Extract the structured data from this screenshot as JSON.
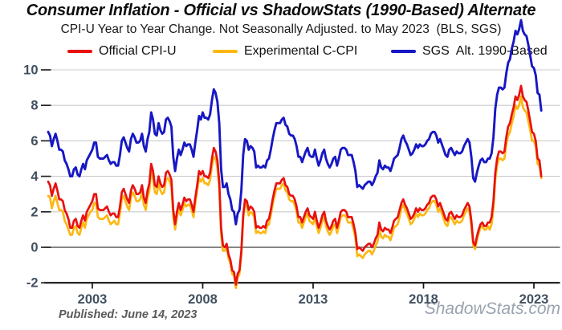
{
  "title": "Consumer Inflation - Official vs ShadowStats (1990-Based) Alternate",
  "subtitle": "CPI-U Year to Year Change. Not Seasonally Adjusted. to May 2023  (BLS, SGS)",
  "legend": {
    "items": [
      {
        "label": "Official CPI-U"
      },
      {
        "label": "Experimental C-CPI"
      },
      {
        "label": "SGS  Alt. 1990-Based"
      }
    ]
  },
  "footer": {
    "published": "Published: June 14, 2023",
    "watermark": "ShadowStats.com"
  },
  "colors": {
    "official_red": "#e81110",
    "ccpi_yellow": "#fcb813",
    "sgs_blue": "#1717c4",
    "gridline": "#cccccc",
    "zero_line": "#5f5f5f",
    "axis_line": "#151515",
    "axis_label": "#41505f",
    "watermark_gray": "#9aa3ae"
  },
  "chart_data": {
    "type": "line",
    "title": "Consumer Inflation - Official vs ShadowStats (1990-Based) Alternate",
    "xlabel": "",
    "ylabel": "",
    "x_start_year": 2001,
    "points_per_year": 12,
    "x_end_label": "May 2023",
    "grid": "horizontal",
    "legend_position": "top",
    "axis_label_color": "#41505f",
    "y_axis": {
      "min": -2,
      "max": 10,
      "ticks": [
        10,
        8,
        6,
        4,
        2,
        0,
        -2
      ]
    },
    "x_axis": {
      "ticks": [
        2003,
        2008,
        2013,
        2018,
        2023
      ]
    },
    "draw_order": [
      1,
      0,
      2
    ],
    "series": [
      {
        "key": "official-cpiu",
        "name": "Official CPI-U",
        "color": "#e81110",
        "values": [
          3.7,
          3.5,
          2.9,
          3.3,
          3.6,
          3.2,
          2.7,
          2.7,
          2.6,
          2.1,
          1.9,
          1.6,
          1.1,
          1.1,
          1.5,
          1.6,
          1.2,
          1.1,
          1.5,
          1.8,
          1.5,
          2.0,
          2.2,
          2.4,
          2.6,
          3.0,
          3.0,
          2.2,
          2.1,
          2.1,
          2.1,
          2.2,
          2.3,
          2.0,
          1.8,
          1.9,
          1.9,
          1.7,
          1.7,
          2.3,
          3.1,
          3.3,
          3.0,
          2.7,
          2.5,
          3.2,
          3.5,
          3.3,
          3.0,
          3.0,
          3.1,
          3.5,
          2.8,
          2.5,
          3.2,
          3.6,
          4.7,
          4.3,
          3.5,
          3.4,
          4.0,
          3.6,
          3.4,
          3.5,
          4.2,
          4.3,
          4.1,
          3.8,
          2.1,
          1.3,
          2.0,
          2.5,
          2.1,
          2.4,
          2.8,
          2.6,
          2.7,
          2.7,
          2.4,
          2.0,
          2.8,
          3.5,
          4.3,
          4.1,
          4.3,
          4.0,
          4.0,
          3.9,
          4.2,
          5.0,
          5.6,
          5.4,
          4.9,
          3.7,
          1.1,
          0.1,
          0.0,
          0.2,
          -0.4,
          -0.7,
          -1.3,
          -1.4,
          -2.1,
          -1.5,
          -1.3,
          -0.2,
          1.8,
          2.7,
          2.6,
          2.1,
          2.3,
          2.2,
          2.0,
          1.1,
          1.2,
          1.1,
          1.1,
          1.2,
          1.1,
          1.5,
          1.6,
          2.1,
          2.7,
          3.2,
          3.6,
          3.6,
          3.6,
          3.8,
          3.9,
          3.5,
          3.4,
          3.0,
          2.9,
          2.9,
          2.7,
          2.3,
          1.7,
          1.7,
          1.4,
          1.7,
          2.0,
          2.2,
          1.8,
          1.7,
          1.6,
          2.0,
          1.5,
          1.1,
          1.4,
          1.8,
          2.0,
          1.5,
          1.2,
          1.0,
          1.2,
          1.5,
          1.6,
          1.1,
          1.5,
          2.0,
          2.1,
          2.1,
          2.0,
          1.7,
          1.7,
          1.7,
          1.3,
          0.8,
          -0.1,
          0.0,
          -0.1,
          -0.2,
          0.0,
          0.1,
          0.2,
          0.2,
          0.0,
          0.2,
          0.5,
          0.7,
          1.4,
          1.0,
          0.9,
          1.1,
          1.0,
          1.0,
          0.8,
          1.1,
          1.5,
          1.6,
          1.7,
          2.1,
          2.5,
          2.7,
          2.4,
          2.2,
          1.9,
          1.6,
          1.7,
          1.9,
          2.2,
          2.0,
          2.2,
          2.1,
          2.1,
          2.2,
          2.4,
          2.5,
          2.8,
          2.9,
          2.9,
          2.7,
          2.3,
          2.5,
          2.2,
          1.9,
          1.6,
          1.5,
          1.9,
          2.0,
          1.8,
          1.6,
          1.8,
          1.7,
          1.7,
          1.8,
          2.1,
          2.3,
          2.5,
          2.3,
          1.5,
          0.3,
          0.1,
          0.6,
          1.0,
          1.3,
          1.4,
          1.2,
          1.2,
          1.4,
          1.4,
          1.7,
          2.6,
          4.2,
          5.0,
          5.4,
          5.4,
          5.3,
          5.4,
          6.2,
          6.8,
          7.0,
          7.5,
          7.9,
          8.5,
          8.3,
          8.6,
          9.1,
          8.5,
          8.3,
          8.2,
          7.7,
          7.1,
          6.5,
          6.4,
          6.0,
          5.0,
          4.9,
          4.0
        ]
      },
      {
        "key": "experimental-ccpi",
        "name": "Experimental C-CPI",
        "color": "#fcb813",
        "values": [
          2.9,
          2.8,
          2.2,
          2.6,
          2.9,
          2.5,
          2.1,
          2.1,
          2.0,
          1.5,
          1.3,
          1.0,
          0.7,
          0.7,
          1.1,
          1.2,
          0.8,
          0.7,
          1.1,
          1.4,
          1.1,
          1.6,
          1.8,
          2.0,
          2.1,
          2.5,
          2.5,
          1.7,
          1.6,
          1.6,
          1.6,
          1.7,
          1.8,
          1.5,
          1.3,
          1.4,
          1.5,
          1.3,
          1.3,
          1.9,
          2.7,
          2.9,
          2.6,
          2.3,
          2.1,
          2.8,
          3.1,
          2.9,
          2.6,
          2.6,
          2.7,
          3.1,
          2.4,
          2.1,
          2.8,
          3.2,
          4.3,
          3.9,
          3.1,
          3.0,
          3.6,
          3.2,
          3.0,
          3.1,
          3.8,
          3.9,
          3.7,
          3.4,
          1.7,
          1.0,
          1.7,
          2.2,
          1.8,
          2.1,
          2.5,
          2.3,
          2.4,
          2.4,
          2.1,
          1.7,
          2.5,
          3.2,
          3.9,
          3.7,
          3.9,
          3.6,
          3.6,
          3.5,
          3.8,
          4.6,
          5.1,
          5.0,
          4.5,
          3.3,
          0.7,
          -0.2,
          -0.2,
          0.0,
          -0.6,
          -0.9,
          -1.5,
          -1.6,
          -2.3,
          -1.7,
          -1.5,
          -0.4,
          1.6,
          2.5,
          2.3,
          1.8,
          2.0,
          1.9,
          1.7,
          0.8,
          0.9,
          0.8,
          0.8,
          0.9,
          0.8,
          1.2,
          1.3,
          1.8,
          2.4,
          2.9,
          3.3,
          3.3,
          3.3,
          3.5,
          3.6,
          3.2,
          3.1,
          2.7,
          2.6,
          2.6,
          2.4,
          2.0,
          1.4,
          1.4,
          1.1,
          1.4,
          1.7,
          1.9,
          1.5,
          1.4,
          1.3,
          1.7,
          1.2,
          0.8,
          1.1,
          1.5,
          1.7,
          1.2,
          0.9,
          0.7,
          0.9,
          1.2,
          1.3,
          0.8,
          1.2,
          1.7,
          1.8,
          1.8,
          1.7,
          1.4,
          1.4,
          1.4,
          1.0,
          0.5,
          -0.5,
          -0.4,
          -0.5,
          -0.6,
          -0.4,
          -0.3,
          -0.2,
          -0.2,
          -0.4,
          -0.2,
          0.1,
          0.3,
          1.0,
          0.6,
          0.5,
          0.7,
          0.6,
          0.6,
          0.4,
          0.7,
          1.1,
          1.2,
          1.3,
          1.7,
          2.2,
          2.4,
          2.1,
          1.9,
          1.6,
          1.3,
          1.4,
          1.6,
          1.9,
          1.7,
          1.9,
          1.8,
          1.8,
          1.9,
          2.1,
          2.2,
          2.5,
          2.6,
          2.6,
          2.4,
          2.0,
          2.2,
          1.9,
          1.6,
          1.3,
          1.2,
          1.6,
          1.7,
          1.5,
          1.3,
          1.5,
          1.4,
          1.4,
          1.5,
          1.8,
          2.0,
          2.2,
          2.0,
          1.2,
          0.1,
          -0.1,
          0.4,
          0.8,
          1.1,
          1.2,
          1.0,
          1.0,
          1.2,
          1.0,
          1.3,
          2.2,
          3.8,
          4.6,
          5.0,
          5.0,
          4.9,
          5.0,
          5.8,
          6.3,
          6.5,
          7.0,
          7.4,
          8.0,
          7.8,
          8.0,
          8.5,
          7.9,
          7.7,
          7.6,
          7.1,
          6.6,
          6.0,
          6.0,
          5.7,
          4.7,
          4.6,
          3.9
        ]
      },
      {
        "key": "sgs-alt-1990",
        "name": "SGS Alt. 1990-Based",
        "color": "#1717c4",
        "values": [
          6.5,
          6.3,
          5.7,
          6.1,
          6.4,
          6.0,
          5.5,
          5.5,
          5.4,
          4.9,
          4.7,
          4.4,
          4.0,
          4.0,
          4.4,
          4.5,
          4.1,
          4.0,
          4.4,
          4.7,
          4.4,
          4.9,
          5.1,
          5.3,
          5.5,
          5.9,
          5.9,
          5.1,
          5.0,
          5.0,
          5.0,
          5.1,
          5.2,
          4.9,
          4.7,
          4.8,
          4.8,
          4.6,
          4.6,
          5.2,
          6.0,
          6.2,
          5.9,
          5.6,
          5.4,
          6.1,
          6.4,
          6.2,
          5.9,
          5.9,
          6.0,
          6.4,
          5.7,
          5.4,
          6.1,
          6.5,
          7.6,
          7.2,
          6.4,
          6.3,
          7.0,
          6.6,
          6.4,
          6.5,
          7.2,
          7.3,
          7.1,
          6.8,
          5.1,
          4.3,
          5.0,
          5.5,
          5.2,
          5.5,
          5.9,
          5.7,
          5.8,
          5.8,
          5.5,
          5.1,
          5.9,
          6.6,
          7.4,
          7.2,
          7.6,
          7.3,
          7.3,
          7.2,
          7.5,
          8.3,
          8.9,
          8.7,
          8.2,
          7.0,
          4.4,
          3.4,
          3.4,
          3.6,
          3.0,
          2.7,
          2.1,
          2.0,
          1.3,
          1.9,
          2.1,
          3.2,
          5.2,
          6.1,
          6.0,
          5.5,
          5.7,
          5.6,
          5.4,
          4.5,
          4.6,
          4.5,
          4.5,
          4.6,
          4.5,
          4.9,
          5.0,
          5.5,
          6.1,
          6.6,
          7.0,
          7.0,
          7.0,
          7.2,
          7.3,
          6.9,
          6.8,
          6.4,
          6.3,
          6.3,
          6.1,
          5.7,
          5.1,
          5.1,
          4.8,
          5.1,
          5.4,
          5.6,
          5.2,
          5.1,
          5.1,
          5.5,
          5.0,
          4.6,
          4.9,
          5.3,
          5.5,
          5.0,
          4.7,
          4.5,
          4.7,
          5.0,
          5.1,
          4.6,
          5.0,
          5.5,
          5.6,
          5.6,
          5.5,
          5.2,
          5.2,
          5.2,
          4.8,
          4.3,
          3.4,
          3.5,
          3.4,
          3.3,
          3.5,
          3.6,
          3.7,
          3.7,
          3.5,
          3.7,
          4.0,
          4.2,
          4.9,
          4.5,
          4.4,
          4.6,
          4.5,
          4.5,
          4.3,
          4.6,
          5.0,
          5.1,
          5.2,
          5.6,
          6.1,
          6.3,
          6.0,
          5.8,
          5.5,
          5.2,
          5.3,
          5.5,
          5.8,
          5.6,
          5.8,
          5.7,
          5.7,
          5.8,
          6.0,
          6.1,
          6.4,
          6.5,
          6.5,
          6.3,
          5.9,
          6.1,
          5.8,
          5.5,
          5.2,
          5.1,
          5.5,
          5.6,
          5.4,
          5.2,
          5.4,
          5.3,
          5.3,
          5.4,
          5.7,
          5.9,
          6.1,
          5.9,
          5.1,
          3.9,
          3.7,
          4.2,
          4.6,
          4.9,
          5.0,
          4.8,
          4.8,
          5.0,
          5.0,
          5.3,
          6.2,
          7.8,
          8.6,
          9.0,
          9.0,
          8.9,
          9.0,
          9.8,
          10.4,
          10.6,
          11.2,
          11.6,
          12.2,
          12.0,
          12.3,
          12.8,
          12.2,
          12.0,
          11.9,
          11.4,
          10.8,
          10.2,
          10.1,
          9.7,
          8.7,
          8.6,
          7.7
        ]
      }
    ]
  }
}
